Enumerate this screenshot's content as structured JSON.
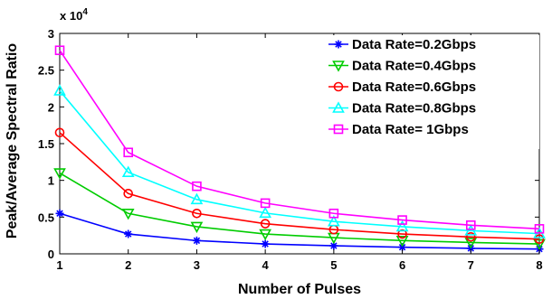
{
  "chart_data": {
    "type": "line",
    "title": "",
    "xlabel": "Number of Pulses",
    "ylabel": "Peak/Average Spectral Ratio",
    "y_multiplier": "x 10",
    "y_multiplier_exp": "4",
    "x": [
      1,
      2,
      3,
      4,
      5,
      6,
      7,
      8
    ],
    "xlim": [
      1,
      8
    ],
    "ylim": [
      0,
      3
    ],
    "x_ticks": [
      "1",
      "2",
      "3",
      "4",
      "5",
      "6",
      "7",
      "8"
    ],
    "y_ticks": [
      "0",
      "0.5",
      "1",
      "1.5",
      "2",
      "2.5",
      "3"
    ],
    "grid": false,
    "legend_position": "top-right",
    "series": [
      {
        "name": "Data Rate=0.2Gbps",
        "color": "#0000ff",
        "marker": "star",
        "values": [
          0.55,
          0.27,
          0.18,
          0.135,
          0.11,
          0.09,
          0.075,
          0.065
        ]
      },
      {
        "name": "Data Rate=0.4Gbps",
        "color": "#00cc00",
        "marker": "triangle-down",
        "values": [
          1.1,
          0.55,
          0.37,
          0.27,
          0.22,
          0.18,
          0.155,
          0.135
        ]
      },
      {
        "name": "Data Rate=0.6Gbps",
        "color": "#ff0000",
        "marker": "circle",
        "values": [
          1.65,
          0.82,
          0.55,
          0.41,
          0.33,
          0.27,
          0.23,
          0.2
        ]
      },
      {
        "name": "Data Rate=0.8Gbps",
        "color": "#00ffff",
        "marker": "triangle-up",
        "values": [
          2.22,
          1.11,
          0.74,
          0.555,
          0.44,
          0.37,
          0.315,
          0.275
        ]
      },
      {
        "name": "Data Rate=   1Gbps",
        "color": "#ff00ff",
        "marker": "square",
        "values": [
          2.77,
          1.38,
          0.92,
          0.69,
          0.55,
          0.46,
          0.39,
          0.34
        ]
      }
    ]
  }
}
